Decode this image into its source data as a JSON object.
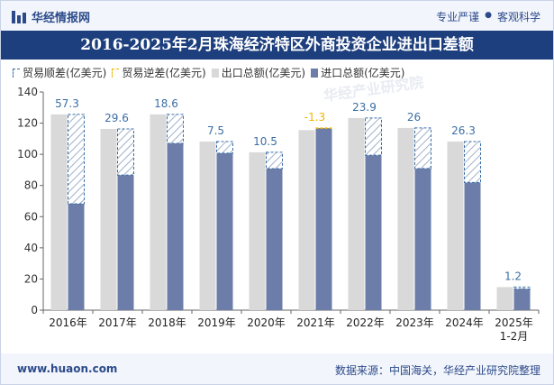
{
  "header": {
    "logo_text": "华经情报网",
    "tag1": "专业严谨",
    "sep": "●",
    "tag2": "客观科学",
    "title": "2016-2025年2月珠海经济特区外商投资企业进出口差额"
  },
  "footer": {
    "site": "www.huaon.com",
    "source": "数据来源：中国海关，华经产业研究院整理"
  },
  "watermark": "华经产业研究院",
  "colors": {
    "brand": "#1e3f7d",
    "export": "#d9d9d9",
    "import": "#6b7da8",
    "surplus": "#3b6ea5",
    "deficit": "#f0b400"
  },
  "chart_data": {
    "type": "bar",
    "categories": [
      "2016年",
      "2017年",
      "2018年",
      "2019年",
      "2020年",
      "2021年",
      "2022年",
      "2023年",
      "2024年",
      "2025年\n1-2月"
    ],
    "series": [
      {
        "name": "贸易顺差(亿美元)",
        "values": [
          57.3,
          29.6,
          18.6,
          7.5,
          10.5,
          null,
          23.9,
          26,
          26.3,
          1.2
        ]
      },
      {
        "name": "贸易逆差(亿美元)",
        "values": [
          null,
          null,
          null,
          null,
          null,
          -1.3,
          null,
          null,
          null,
          null
        ]
      },
      {
        "name": "出口总额(亿美元)",
        "values": [
          125.6,
          116.3,
          125.6,
          108.2,
          101.3,
          115.5,
          123.3,
          116.9,
          108.2,
          14.8
        ]
      },
      {
        "name": "进口总额(亿美元)",
        "values": [
          68.3,
          86.7,
          107.0,
          100.7,
          90.8,
          116.8,
          99.4,
          90.9,
          81.9,
          13.6
        ]
      }
    ],
    "ylim": [
      0,
      140
    ],
    "yticks": [
      0,
      20,
      40,
      60,
      80,
      100,
      120,
      140
    ],
    "legend_position": "top-left",
    "grid": false
  }
}
